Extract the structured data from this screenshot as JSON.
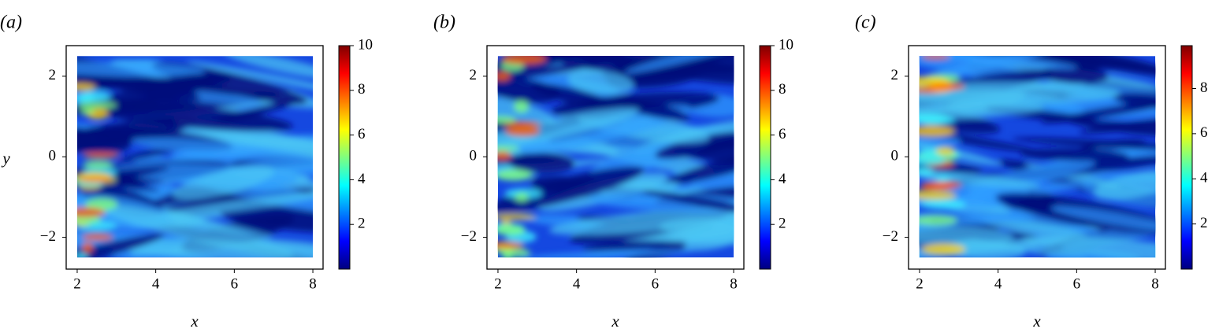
{
  "chart_data": [
    {
      "type": "heatmap",
      "panel_label": "(a)",
      "x_label": "x",
      "y_label": "y",
      "colormap": "jet",
      "xlim": [
        1.72,
        8.26
      ],
      "ylim": [
        -2.79,
        2.76
      ],
      "xticks": [
        2,
        4,
        6,
        8
      ],
      "yticks": [
        {
          "value": -2,
          "label": "−2"
        },
        0,
        2
      ],
      "xrange": [
        2,
        8
      ],
      "yrange": [
        -2.5,
        2.5
      ],
      "clim": [
        0,
        10
      ],
      "cticks": [
        2,
        4,
        6,
        8,
        10
      ]
    },
    {
      "type": "heatmap",
      "panel_label": "(b)",
      "x_label": "x",
      "colormap": "jet",
      "xlim": [
        1.72,
        8.26
      ],
      "ylim": [
        -2.79,
        2.76
      ],
      "xticks": [
        2,
        4,
        6,
        8
      ],
      "yticks": [
        {
          "value": -2,
          "label": "−2"
        },
        0,
        2
      ],
      "xrange": [
        2,
        8
      ],
      "yrange": [
        -2.5,
        2.5
      ],
      "clim": [
        0,
        10
      ],
      "cticks": [
        2,
        4,
        6,
        8,
        10
      ]
    },
    {
      "type": "heatmap",
      "panel_label": "(c)",
      "x_label": "x",
      "colormap": "jet",
      "xlim": [
        1.72,
        8.26
      ],
      "ylim": [
        -2.79,
        2.76
      ],
      "xticks": [
        2,
        4,
        6,
        8
      ],
      "yticks": [
        {
          "value": -2,
          "label": "−2"
        },
        0,
        2
      ],
      "xrange": [
        2,
        8
      ],
      "yrange": [
        -2.5,
        2.5
      ],
      "clim": [
        0,
        9.9
      ],
      "cticks": [
        2,
        4,
        6,
        8
      ]
    }
  ]
}
